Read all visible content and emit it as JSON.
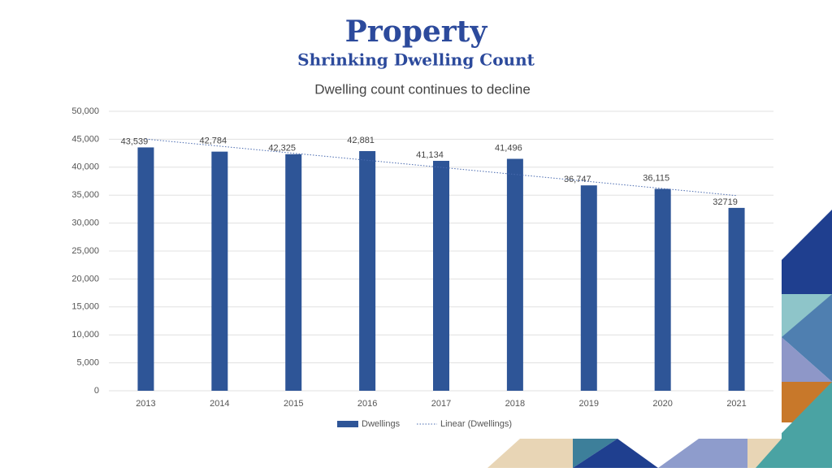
{
  "header": {
    "title": "Property",
    "subtitle": "Shrinking Dwelling Count"
  },
  "chart_data": {
    "type": "bar",
    "title": "Dwelling count continues to decline",
    "categories": [
      "2013",
      "2014",
      "2015",
      "2016",
      "2017",
      "2018",
      "2019",
      "2020",
      "2021"
    ],
    "series": [
      {
        "name": "Dwellings",
        "color": "#2e5597",
        "values": [
          43539,
          42784,
          42325,
          42881,
          41134,
          41496,
          36747,
          36115,
          32719
        ],
        "value_labels": [
          "43,539",
          "42,784",
          "42,325",
          "42,881",
          "41,134",
          "41,496",
          "36,747",
          "36,115",
          "32719"
        ]
      }
    ],
    "trendline": {
      "name": "Linear (Dwellings)",
      "color": "#4a6bb0",
      "values": [
        45026,
        43762,
        42498,
        41235,
        39971,
        38707,
        37443,
        36179,
        34916
      ]
    },
    "ylim": [
      0,
      50000
    ],
    "yticks": [
      0,
      {
        "value": 5000,
        "label": "5,000"
      },
      {
        "value": 10000,
        "label": "10,000"
      },
      {
        "value": 15000,
        "label": "15,000"
      },
      {
        "value": 20000,
        "label": "20,000"
      },
      {
        "value": 25000,
        "label": "25,000"
      },
      {
        "value": 30000,
        "label": "30,000"
      },
      {
        "value": 35000,
        "label": "35,000"
      },
      {
        "value": 40000,
        "label": "40,000"
      },
      {
        "value": 45000,
        "label": "45,000"
      },
      {
        "value": 50000,
        "label": "50,000"
      }
    ],
    "grid": true,
    "legend": "bottom"
  }
}
